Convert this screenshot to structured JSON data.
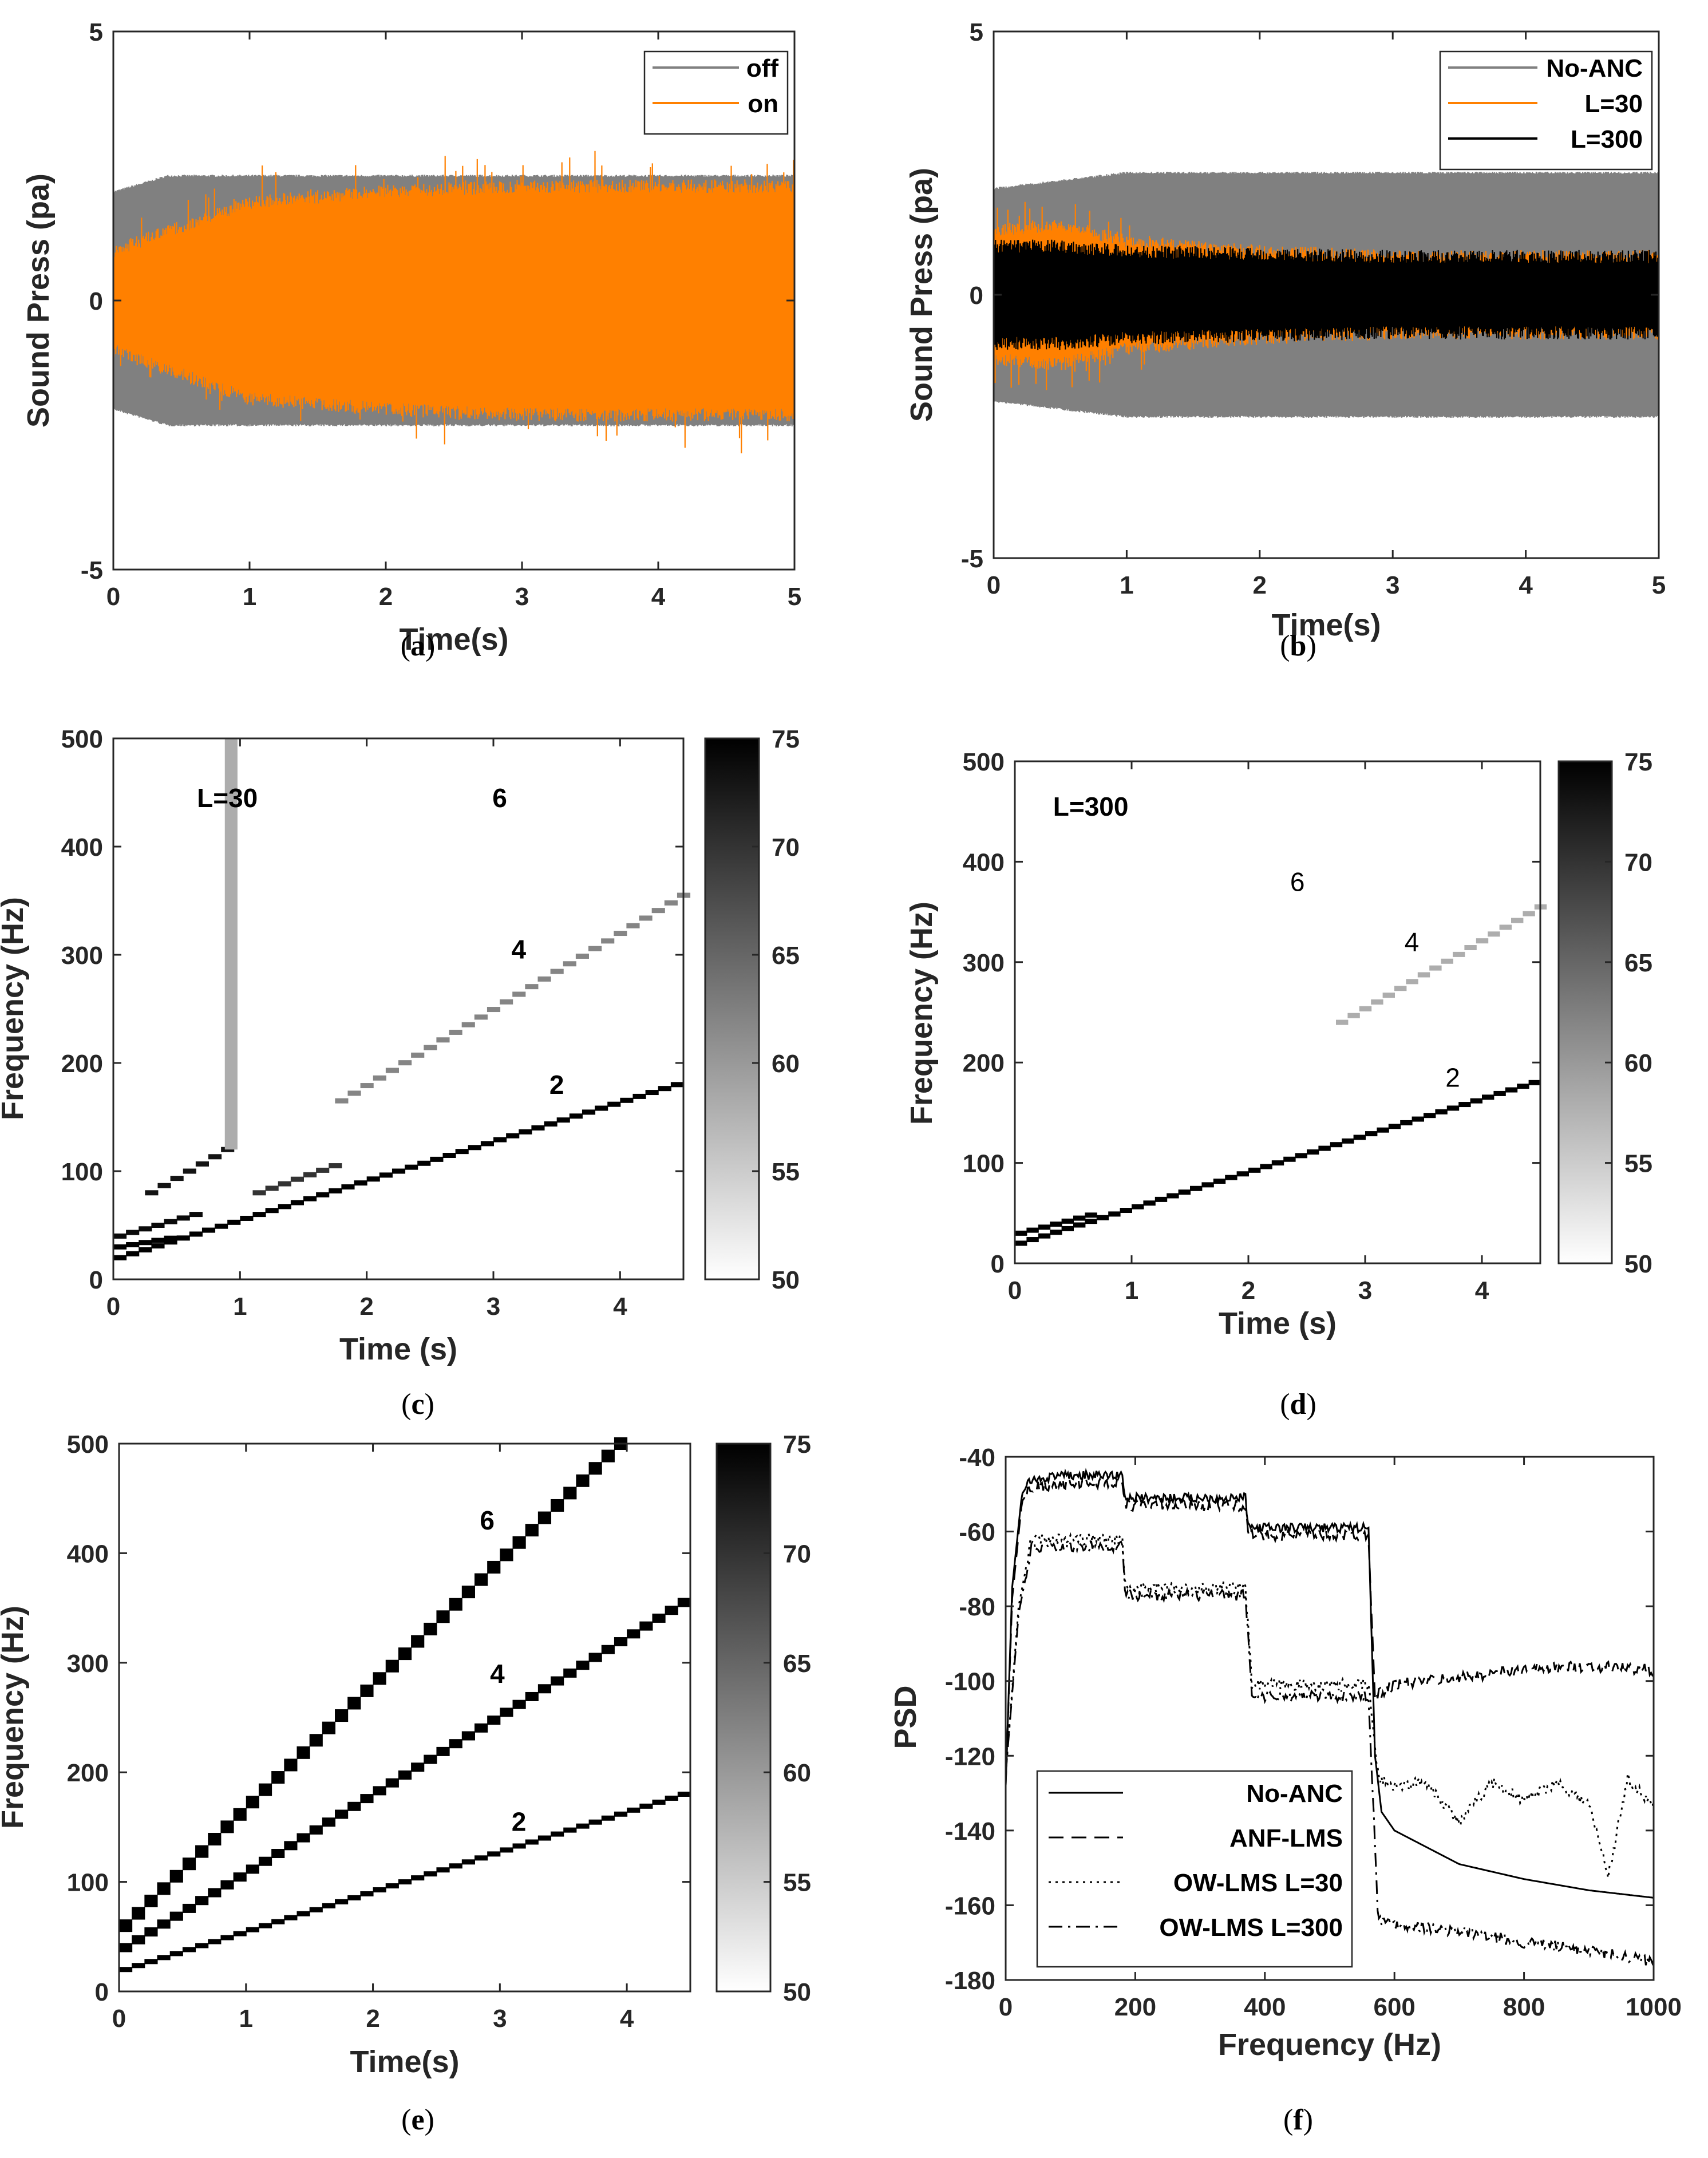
{
  "chart_data": [
    {
      "id": "a",
      "type": "line",
      "caption": "(a)",
      "xlabel": "Time(s)",
      "ylabel": "Sound Press (pa)",
      "xlim": [
        0,
        5
      ],
      "ylim": [
        -5,
        5
      ],
      "xticks": [
        "0",
        "1",
        "2",
        "3",
        "4",
        "5"
      ],
      "yticks": [
        "-5",
        "0",
        "5"
      ],
      "legend_position": "top-right",
      "series": [
        {
          "name": "off",
          "color": "#808080",
          "envelope": {
            "t": [
              0,
              0.4,
              5
            ],
            "amp": [
              2.0,
              2.3,
              2.3
            ]
          }
        },
        {
          "name": "on",
          "color": "#ff8000",
          "envelope": {
            "t": [
              0,
              1,
              2,
              3,
              4,
              5
            ],
            "amp": [
              0.9,
              1.8,
              2.0,
              2.1,
              2.1,
              2.1
            ]
          }
        }
      ]
    },
    {
      "id": "b",
      "type": "line",
      "caption": "(b)",
      "xlabel": "Time(s)",
      "ylabel": "Sound Press (pa)",
      "xlim": [
        0,
        5
      ],
      "ylim": [
        -5,
        5
      ],
      "xticks": [
        "0",
        "1",
        "2",
        "3",
        "4",
        "5"
      ],
      "yticks": [
        "-5",
        "0",
        "5"
      ],
      "legend_position": "top-right",
      "series": [
        {
          "name": "No-ANC",
          "color": "#808080",
          "envelope": {
            "t": [
              0,
              1,
              5
            ],
            "amp": [
              2.0,
              2.3,
              2.3
            ]
          }
        },
        {
          "name": "L=30",
          "color": "#ff8000",
          "envelope": {
            "t": [
              0,
              0.5,
              1,
              2,
              3,
              5
            ],
            "amp": [
              1.2,
              1.3,
              1.0,
              0.8,
              0.7,
              0.7
            ]
          }
        },
        {
          "name": "L=300",
          "color": "#000000",
          "envelope": {
            "t": [
              0,
              0.5,
              1,
              2,
              3,
              5
            ],
            "amp": [
              0.9,
              0.9,
              0.8,
              0.75,
              0.7,
              0.7
            ]
          }
        }
      ]
    },
    {
      "id": "c",
      "type": "heatmap",
      "caption": "(c)",
      "xlabel": "Time (s)",
      "ylabel": "Frequency (Hz)",
      "xlim": [
        0,
        4.5
      ],
      "ylim": [
        0,
        500
      ],
      "xticks": [
        "0",
        "1",
        "2",
        "3",
        "4"
      ],
      "yticks": [
        "0",
        "100",
        "200",
        "300",
        "400",
        "500"
      ],
      "colorbar": {
        "min": 50,
        "max": 75,
        "ticks": [
          "50",
          "55",
          "60",
          "65",
          "70",
          "75"
        ]
      },
      "annotations": [
        {
          "text": "L=30",
          "x": 0.9,
          "y": 445
        },
        {
          "text": "6",
          "x": 3.05,
          "y": 445
        },
        {
          "text": "4",
          "x": 3.2,
          "y": 305
        },
        {
          "text": "2",
          "x": 3.5,
          "y": 180
        }
      ],
      "tracks": [
        {
          "order": 2,
          "f0": 20,
          "f1": 180,
          "t0": 0,
          "t1": 4.5,
          "level": 75
        },
        {
          "order": 2,
          "f0": 30,
          "f1": 38,
          "t0": 0,
          "t1": 0.45,
          "level": 75
        },
        {
          "order": 4,
          "f0": 40,
          "f1": 60,
          "t0": 0,
          "t1": 0.7,
          "level": 74
        },
        {
          "order": 4,
          "f0": 80,
          "f1": 120,
          "t0": 0.25,
          "t1": 0.9,
          "level": 73
        },
        {
          "order": 4,
          "f0": 80,
          "f1": 105,
          "t0": 1.1,
          "t1": 1.8,
          "level": 70
        },
        {
          "order": 4,
          "f0": 165,
          "f1": 355,
          "t0": 1.75,
          "t1": 4.5,
          "level": 62
        },
        {
          "order": 6,
          "f0": 120,
          "f1": 500,
          "t0": 0.88,
          "t1": 0.98,
          "level": 58
        }
      ]
    },
    {
      "id": "d",
      "type": "heatmap",
      "caption": "(d)",
      "xlabel": "Time (s)",
      "ylabel": "Frequency (Hz)",
      "xlim": [
        0,
        4.5
      ],
      "ylim": [
        0,
        500
      ],
      "xticks": [
        "0",
        "1",
        "2",
        "3",
        "4"
      ],
      "yticks": [
        "0",
        "100",
        "200",
        "300",
        "400",
        "500"
      ],
      "colorbar": {
        "min": 50,
        "max": 75,
        "ticks": [
          "50",
          "55",
          "60",
          "65",
          "70",
          "75"
        ]
      },
      "annotations": [
        {
          "text": "L=300",
          "x": 0.65,
          "y": 455
        },
        {
          "text": "6",
          "x": 2.42,
          "y": 380
        },
        {
          "text": "4",
          "x": 3.4,
          "y": 320
        },
        {
          "text": "2",
          "x": 3.75,
          "y": 185
        }
      ],
      "tracks": [
        {
          "order": 2,
          "f0": 20,
          "f1": 180,
          "t0": 0,
          "t1": 4.5,
          "level": 75
        },
        {
          "order": 2,
          "f0": 30,
          "f1": 48,
          "t0": 0,
          "t1": 0.65,
          "level": 75
        },
        {
          "order": 4,
          "f0": 240,
          "f1": 355,
          "t0": 2.75,
          "t1": 4.5,
          "level": 58
        }
      ]
    },
    {
      "id": "e",
      "type": "heatmap",
      "caption": "(e)",
      "xlabel": "Time(s)",
      "ylabel": "Frequency (Hz)",
      "xlim": [
        0,
        4.5
      ],
      "ylim": [
        0,
        500
      ],
      "xticks": [
        "0",
        "1",
        "2",
        "3",
        "4"
      ],
      "yticks": [
        "0",
        "100",
        "200",
        "300",
        "400",
        "500"
      ],
      "colorbar": {
        "min": 50,
        "max": 75,
        "ticks": [
          "50",
          "55",
          "60",
          "65",
          "70",
          "75"
        ]
      },
      "annotations": [
        {
          "text": "6",
          "x": 2.9,
          "y": 430
        },
        {
          "text": "4",
          "x": 2.98,
          "y": 290
        },
        {
          "text": "2",
          "x": 3.15,
          "y": 155
        }
      ],
      "tracks": [
        {
          "order": 2,
          "f0": 20,
          "f1": 180,
          "t0": 0,
          "t1": 4.5,
          "level": 75
        },
        {
          "order": 4,
          "f0": 40,
          "f1": 355,
          "t0": 0,
          "t1": 4.5,
          "level": 75
        },
        {
          "order": 6,
          "f0": 60,
          "f1": 500,
          "t0": 0,
          "t1": 4.0,
          "level": 75
        }
      ]
    },
    {
      "id": "f",
      "type": "line",
      "caption": "(f)",
      "xlabel": "Frequency (Hz)",
      "ylabel": "PSD",
      "xlim": [
        0,
        1000
      ],
      "ylim": [
        -180,
        -40
      ],
      "xticks": [
        "0",
        "200",
        "400",
        "600",
        "800",
        "1000"
      ],
      "yticks": [
        "-180",
        "-160",
        "-140",
        "-120",
        "-100",
        "-80",
        "-60",
        "-40"
      ],
      "legend_position": "bottom-left",
      "series": [
        {
          "name": "No-ANC",
          "dash": "solid",
          "x": [
            0,
            10,
            25,
            40,
            100,
            180,
            185,
            370,
            375,
            560,
            570,
            580,
            600,
            700,
            800,
            900,
            1000
          ],
          "y": [
            -128,
            -75,
            -50,
            -46,
            -45,
            -45,
            -51,
            -51,
            -59,
            -59,
            -120,
            -135,
            -140,
            -149,
            -153,
            -156,
            -158
          ]
        },
        {
          "name": "ANF-LMS",
          "dash": "dashed",
          "x": [
            0,
            10,
            25,
            40,
            100,
            180,
            185,
            370,
            375,
            560,
            570,
            600,
            700,
            800,
            900,
            1000
          ],
          "y": [
            -128,
            -78,
            -52,
            -48,
            -47,
            -47,
            -53,
            -53,
            -61,
            -61,
            -104,
            -101,
            -99,
            -97,
            -96,
            -97
          ]
        },
        {
          "name": "OW-LMS L=30",
          "dash": "dotted",
          "x": [
            0,
            20,
            40,
            100,
            180,
            185,
            370,
            380,
            560,
            575,
            600,
            650,
            700,
            750,
            800,
            850,
            900,
            930,
            960,
            1000
          ],
          "y": [
            -125,
            -80,
            -62,
            -62,
            -62,
            -75,
            -75,
            -101,
            -101,
            -126,
            -128,
            -127,
            -138,
            -127,
            -132,
            -127,
            -133,
            -152,
            -126,
            -134
          ]
        },
        {
          "name": "OW-LMS L=300",
          "dash": "dashdot",
          "x": [
            0,
            20,
            40,
            100,
            180,
            185,
            370,
            380,
            560,
            575,
            600,
            700,
            800,
            900,
            1000
          ],
          "y": [
            -125,
            -82,
            -64,
            -64,
            -64,
            -77,
            -77,
            -104,
            -104,
            -164,
            -165,
            -167,
            -170,
            -172,
            -175
          ]
        }
      ]
    }
  ]
}
